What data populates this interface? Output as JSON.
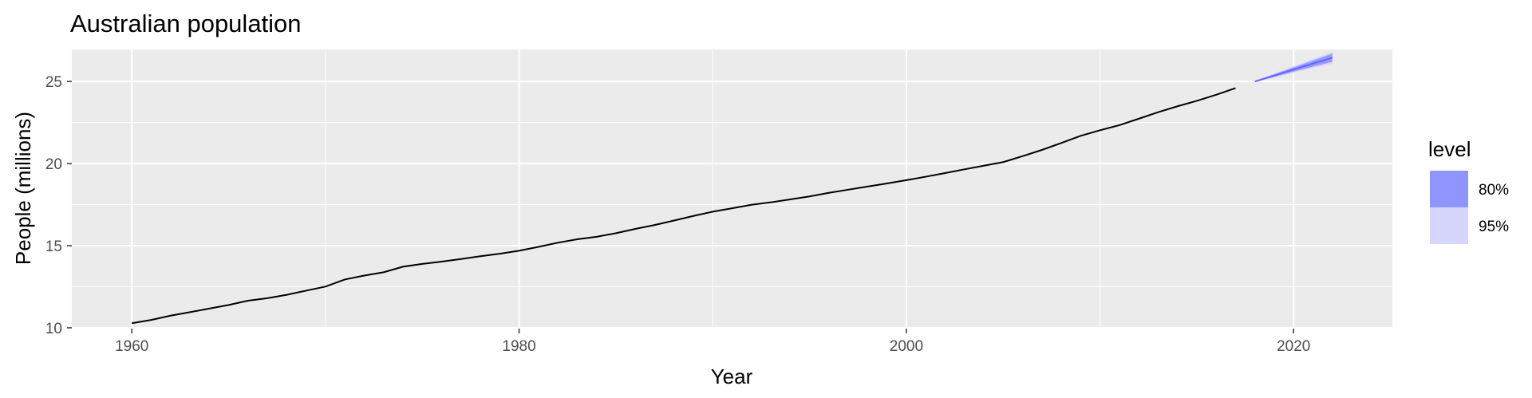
{
  "chart_data": {
    "type": "line",
    "title": "Australian population",
    "xlabel": "Year",
    "ylabel": "People (millions)",
    "xlim": [
      1956.9,
      2025.1
    ],
    "ylim": [
      9.95,
      26.95
    ],
    "x_ticks": [
      1960,
      1980,
      2000,
      2020
    ],
    "y_ticks": [
      10,
      15,
      20,
      25
    ],
    "grid": true,
    "legend_position": "right",
    "series": [
      {
        "name": "",
        "color": "#000000",
        "x": [
          1960,
          1961,
          1962,
          1963,
          1964,
          1965,
          1966,
          1967,
          1968,
          1969,
          1970,
          1971,
          1972,
          1973,
          1974,
          1975,
          1976,
          1977,
          1978,
          1979,
          1980,
          1981,
          1982,
          1983,
          1984,
          1985,
          1986,
          1987,
          1988,
          1989,
          1990,
          1991,
          1992,
          1993,
          1994,
          1995,
          1996,
          1997,
          1998,
          1999,
          2000,
          2001,
          2002,
          2003,
          2004,
          2005,
          2006,
          2007,
          2008,
          2009,
          2010,
          2011,
          2012,
          2013,
          2014,
          2015,
          2016,
          2017
        ],
        "values": [
          10.28,
          10.48,
          10.74,
          10.95,
          11.17,
          11.39,
          11.65,
          11.8,
          12.01,
          12.26,
          12.51,
          12.94,
          13.18,
          13.38,
          13.72,
          13.89,
          14.03,
          14.19,
          14.36,
          14.51,
          14.69,
          14.93,
          15.18,
          15.39,
          15.54,
          15.76,
          16.02,
          16.26,
          16.53,
          16.81,
          17.07,
          17.28,
          17.49,
          17.64,
          17.82,
          18.0,
          18.22,
          18.41,
          18.6,
          18.79,
          18.99,
          19.2,
          19.42,
          19.65,
          19.87,
          20.09,
          20.45,
          20.83,
          21.25,
          21.69,
          22.03,
          22.34,
          22.73,
          23.13,
          23.49,
          23.82,
          24.19,
          24.6
        ]
      }
    ],
    "forecast": {
      "color": "#6666ff",
      "x": [
        2018,
        2019,
        2020,
        2021,
        2022
      ],
      "mean": [
        25.0,
        25.36,
        25.73,
        26.09,
        26.45
      ],
      "lo80": [
        24.97,
        25.28,
        25.6,
        25.9,
        26.2
      ],
      "hi80": [
        25.03,
        25.44,
        25.86,
        26.28,
        26.7
      ],
      "lo95": [
        24.95,
        25.24,
        25.53,
        25.82,
        26.08
      ],
      "hi95": [
        25.05,
        25.48,
        25.93,
        26.36,
        26.82
      ]
    },
    "legend": {
      "title": "level",
      "items": [
        {
          "label": "80%",
          "color": "#8f94ff"
        },
        {
          "label": "95%",
          "color": "#d6d6fc"
        }
      ]
    }
  }
}
